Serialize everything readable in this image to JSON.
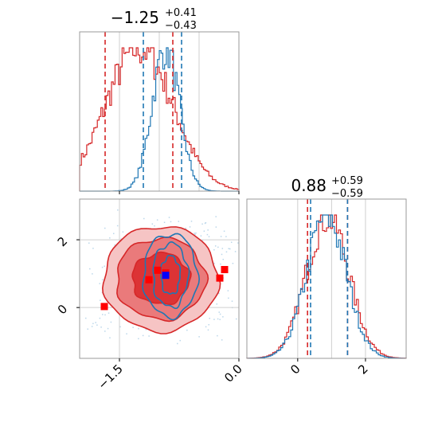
{
  "colors": {
    "red": "#d62728",
    "blue": "#1f77b4",
    "red_fill_outer": "#f6c4c4",
    "red_fill_mid": "#ea7a7b",
    "red_fill_inner": "#dc3335",
    "grid": "#cfcfcf",
    "scatter": "#bcd7ea",
    "marker_red": "#ff0000",
    "marker_blue": "#0000ff"
  },
  "chart_data": [
    {
      "type": "histogram",
      "panel": "param1-marginal",
      "title": {
        "value": "−1.25",
        "upper": "+0.41",
        "lower": "−0.43"
      },
      "xlim": [
        -2.0,
        0.0
      ],
      "grid": true,
      "series": [
        {
          "color": "red",
          "peak": -1.25,
          "width": 0.42,
          "quantiles": [
            -1.68,
            -0.83
          ]
        },
        {
          "color": "blue",
          "peak": -0.92,
          "width": 0.17,
          "quantiles": [
            -1.2,
            -0.72
          ]
        }
      ]
    },
    {
      "type": "histogram",
      "panel": "param2-marginal",
      "title": {
        "value": "0.88",
        "upper": "+0.59",
        "lower": "−0.59"
      },
      "xlim": [
        -1.5,
        3.2
      ],
      "xticks": [
        0,
        2
      ],
      "xtick_labels": [
        "0",
        "2"
      ],
      "grid": true,
      "series": [
        {
          "color": "red",
          "peak": 0.88,
          "width": 0.62,
          "quantiles": [
            0.29,
            1.47
          ]
        },
        {
          "color": "blue",
          "peak": 0.85,
          "width": 0.58,
          "quantiles": [
            0.38,
            1.47
          ]
        }
      ]
    },
    {
      "type": "contour",
      "panel": "param1-vs-param2",
      "xlim": [
        -2.0,
        0.0
      ],
      "ylim": [
        -1.5,
        3.2
      ],
      "xticks": [
        -1.5,
        0.0
      ],
      "xtick_labels": [
        "−1.5",
        "0.0"
      ],
      "yticks": [
        0,
        2
      ],
      "ytick_labels": [
        "0",
        "2"
      ],
      "grid": true,
      "markers": [
        {
          "color": "red",
          "x": -1.69,
          "y": 0.03
        },
        {
          "color": "red",
          "x": -1.13,
          "y": 0.82
        },
        {
          "color": "red",
          "x": -1.02,
          "y": 1.1
        },
        {
          "color": "red",
          "x": -0.92,
          "y": 1.02
        },
        {
          "color": "red",
          "x": -0.24,
          "y": 0.87
        },
        {
          "color": "red",
          "x": -0.18,
          "y": 1.12
        },
        {
          "color": "blue",
          "x": -0.92,
          "y": 0.95
        }
      ]
    }
  ]
}
